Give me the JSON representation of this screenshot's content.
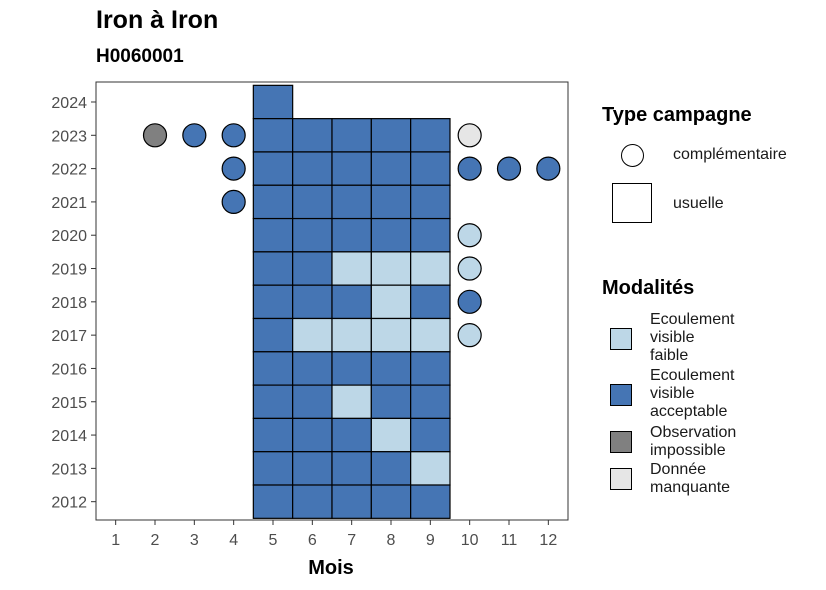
{
  "header": {
    "title": "Iron à Iron",
    "subtitle": "H0060001"
  },
  "legend_type": {
    "title": "Type campagne",
    "items": [
      {
        "label": "complémentaire",
        "shape": "circle"
      },
      {
        "label": "usuelle",
        "shape": "square"
      }
    ]
  },
  "legend_modalites": {
    "title": "Modalités",
    "items": [
      {
        "lines": [
          "Ecoulement",
          "visible",
          "faible"
        ],
        "color": "#bdd7e7"
      },
      {
        "lines": [
          "Ecoulement",
          "visible",
          "acceptable"
        ],
        "color": "#4575b4"
      },
      {
        "lines": [
          "Observation",
          "impossible"
        ],
        "color": "#808080"
      },
      {
        "lines": [
          "Donnée",
          "manquante"
        ],
        "color": "#e6e6e6"
      }
    ]
  },
  "chart_data": {
    "type": "heatmap",
    "title": "Iron à Iron",
    "subtitle": "H0060001",
    "xlabel": "Mois",
    "ylabel": "",
    "x_ticks": [
      1,
      2,
      3,
      4,
      5,
      6,
      7,
      8,
      9,
      10,
      11,
      12
    ],
    "y_ticks": [
      2012,
      2013,
      2014,
      2015,
      2016,
      2017,
      2018,
      2019,
      2020,
      2021,
      2022,
      2023,
      2024
    ],
    "xlim": [
      0.5,
      12.5
    ],
    "ylim": [
      2011.45,
      2024.6
    ],
    "grid": false,
    "legend_position": "right",
    "colors": {
      "faible": "#bdd7e7",
      "acceptable": "#4575b4",
      "impossible": "#808080",
      "manquante": "#e6e6e6"
    },
    "usuelle": [
      {
        "year": 2024,
        "month": 5,
        "value": "acceptable"
      },
      {
        "year": 2023,
        "month": 5,
        "value": "acceptable"
      },
      {
        "year": 2023,
        "month": 6,
        "value": "acceptable"
      },
      {
        "year": 2023,
        "month": 7,
        "value": "acceptable"
      },
      {
        "year": 2023,
        "month": 8,
        "value": "acceptable"
      },
      {
        "year": 2023,
        "month": 9,
        "value": "acceptable"
      },
      {
        "year": 2022,
        "month": 5,
        "value": "acceptable"
      },
      {
        "year": 2022,
        "month": 6,
        "value": "acceptable"
      },
      {
        "year": 2022,
        "month": 7,
        "value": "acceptable"
      },
      {
        "year": 2022,
        "month": 8,
        "value": "acceptable"
      },
      {
        "year": 2022,
        "month": 9,
        "value": "acceptable"
      },
      {
        "year": 2021,
        "month": 5,
        "value": "acceptable"
      },
      {
        "year": 2021,
        "month": 6,
        "value": "acceptable"
      },
      {
        "year": 2021,
        "month": 7,
        "value": "acceptable"
      },
      {
        "year": 2021,
        "month": 8,
        "value": "acceptable"
      },
      {
        "year": 2021,
        "month": 9,
        "value": "acceptable"
      },
      {
        "year": 2020,
        "month": 5,
        "value": "acceptable"
      },
      {
        "year": 2020,
        "month": 6,
        "value": "acceptable"
      },
      {
        "year": 2020,
        "month": 7,
        "value": "acceptable"
      },
      {
        "year": 2020,
        "month": 8,
        "value": "acceptable"
      },
      {
        "year": 2020,
        "month": 9,
        "value": "acceptable"
      },
      {
        "year": 2019,
        "month": 5,
        "value": "acceptable"
      },
      {
        "year": 2019,
        "month": 6,
        "value": "acceptable"
      },
      {
        "year": 2019,
        "month": 7,
        "value": "faible"
      },
      {
        "year": 2019,
        "month": 8,
        "value": "faible"
      },
      {
        "year": 2019,
        "month": 9,
        "value": "faible"
      },
      {
        "year": 2018,
        "month": 5,
        "value": "acceptable"
      },
      {
        "year": 2018,
        "month": 6,
        "value": "acceptable"
      },
      {
        "year": 2018,
        "month": 7,
        "value": "acceptable"
      },
      {
        "year": 2018,
        "month": 8,
        "value": "faible"
      },
      {
        "year": 2018,
        "month": 9,
        "value": "acceptable"
      },
      {
        "year": 2017,
        "month": 5,
        "value": "acceptable"
      },
      {
        "year": 2017,
        "month": 6,
        "value": "faible"
      },
      {
        "year": 2017,
        "month": 7,
        "value": "faible"
      },
      {
        "year": 2017,
        "month": 8,
        "value": "faible"
      },
      {
        "year": 2017,
        "month": 9,
        "value": "faible"
      },
      {
        "year": 2016,
        "month": 5,
        "value": "acceptable"
      },
      {
        "year": 2016,
        "month": 6,
        "value": "acceptable"
      },
      {
        "year": 2016,
        "month": 7,
        "value": "acceptable"
      },
      {
        "year": 2016,
        "month": 8,
        "value": "acceptable"
      },
      {
        "year": 2016,
        "month": 9,
        "value": "acceptable"
      },
      {
        "year": 2015,
        "month": 5,
        "value": "acceptable"
      },
      {
        "year": 2015,
        "month": 6,
        "value": "acceptable"
      },
      {
        "year": 2015,
        "month": 7,
        "value": "faible"
      },
      {
        "year": 2015,
        "month": 8,
        "value": "acceptable"
      },
      {
        "year": 2015,
        "month": 9,
        "value": "acceptable"
      },
      {
        "year": 2014,
        "month": 5,
        "value": "acceptable"
      },
      {
        "year": 2014,
        "month": 6,
        "value": "acceptable"
      },
      {
        "year": 2014,
        "month": 7,
        "value": "acceptable"
      },
      {
        "year": 2014,
        "month": 8,
        "value": "faible"
      },
      {
        "year": 2014,
        "month": 9,
        "value": "acceptable"
      },
      {
        "year": 2013,
        "month": 5,
        "value": "acceptable"
      },
      {
        "year": 2013,
        "month": 6,
        "value": "acceptable"
      },
      {
        "year": 2013,
        "month": 7,
        "value": "acceptable"
      },
      {
        "year": 2013,
        "month": 8,
        "value": "acceptable"
      },
      {
        "year": 2013,
        "month": 9,
        "value": "faible"
      },
      {
        "year": 2012,
        "month": 5,
        "value": "acceptable"
      },
      {
        "year": 2012,
        "month": 6,
        "value": "acceptable"
      },
      {
        "year": 2012,
        "month": 7,
        "value": "acceptable"
      },
      {
        "year": 2012,
        "month": 8,
        "value": "acceptable"
      },
      {
        "year": 2012,
        "month": 9,
        "value": "acceptable"
      }
    ],
    "complementaire": [
      {
        "year": 2023,
        "month": 2,
        "value": "impossible"
      },
      {
        "year": 2023,
        "month": 3,
        "value": "acceptable"
      },
      {
        "year": 2023,
        "month": 4,
        "value": "acceptable"
      },
      {
        "year": 2023,
        "month": 10,
        "value": "manquante"
      },
      {
        "year": 2022,
        "month": 4,
        "value": "acceptable"
      },
      {
        "year": 2022,
        "month": 10,
        "value": "acceptable"
      },
      {
        "year": 2022,
        "month": 11,
        "value": "acceptable"
      },
      {
        "year": 2022,
        "month": 12,
        "value": "acceptable"
      },
      {
        "year": 2021,
        "month": 4,
        "value": "acceptable"
      },
      {
        "year": 2020,
        "month": 10,
        "value": "faible"
      },
      {
        "year": 2019,
        "month": 10,
        "value": "faible"
      },
      {
        "year": 2018,
        "month": 10,
        "value": "acceptable"
      },
      {
        "year": 2017,
        "month": 10,
        "value": "faible"
      }
    ]
  }
}
